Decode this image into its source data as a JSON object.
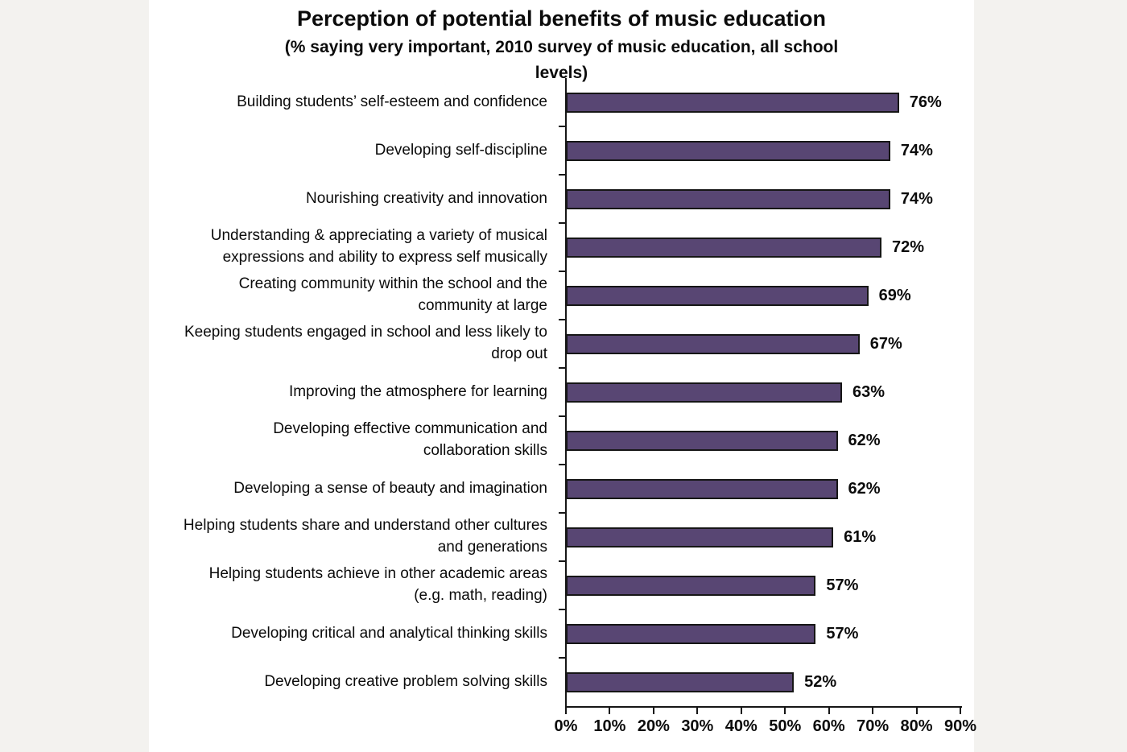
{
  "page": {
    "background_color": "#f3f2ef",
    "panel_background_color": "#ffffff"
  },
  "chart_data": {
    "type": "bar",
    "orientation": "horizontal",
    "title": "Perception of potential benefits of music education",
    "subtitle": "(% saying very important, 2010 survey of music education, all school\nlevels)",
    "categories": [
      "Building students’ self-esteem and confidence",
      "Developing self-discipline",
      "Nourishing creativity and innovation",
      "Understanding & appreciating a variety of musical\nexpressions and ability to express self musically",
      "Creating community within the school and the\ncommunity at large",
      "Keeping students engaged in school and less likely to\ndrop out",
      "Improving the atmosphere for learning",
      "Developing effective communication and\ncollaboration skills",
      "Developing a sense of beauty and imagination",
      "Helping students share and understand other cultures\nand generations",
      "Helping students achieve in other academic areas\n(e.g. math, reading)",
      "Developing critical and analytical thinking skills",
      "Developing creative problem solving skills"
    ],
    "values": [
      76,
      74,
      74,
      72,
      69,
      67,
      63,
      62,
      62,
      61,
      57,
      57,
      52
    ],
    "value_suffix": "%",
    "data_labels": true,
    "xlabel": "",
    "ylabel": "",
    "xlim": [
      0,
      90
    ],
    "x_ticks": [
      "0%",
      "10%",
      "20%",
      "30%",
      "40%",
      "50%",
      "60%",
      "70%",
      "80%",
      "90%"
    ],
    "grid": false,
    "legend": false,
    "bar_color": "#584673",
    "bar_border_color": "#161616",
    "axis_color": "#161616"
  }
}
